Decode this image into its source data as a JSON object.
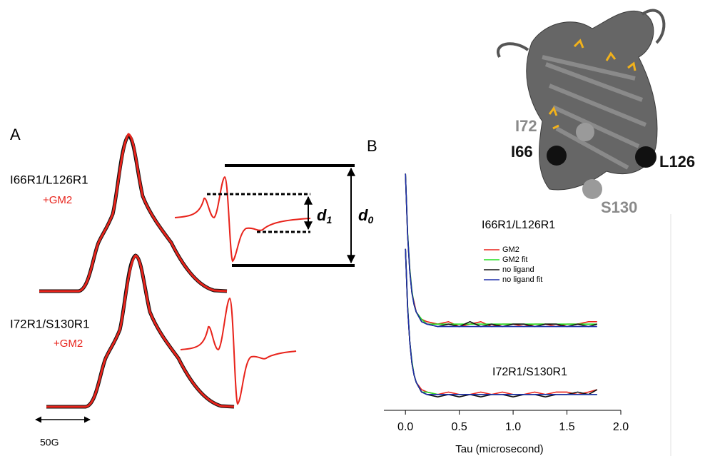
{
  "panel_a": {
    "label": "A",
    "spectra": [
      {
        "label": "I66R1/L126R1",
        "condition": "+GM2"
      },
      {
        "label": "I72R1/S130R1",
        "condition": "+GM2"
      }
    ],
    "d1": [
      "d",
      "1"
    ],
    "d0": [
      "d",
      "0"
    ],
    "scale_bar": "50G"
  },
  "structure": {
    "labels": [
      "I72",
      "I66",
      "L126",
      "S130"
    ]
  },
  "chart_data": {
    "type": "line",
    "label": "B",
    "xlabel": "Tau (microsecond)",
    "xlim": [
      -0.2,
      2.0
    ],
    "xticks": [
      {
        "value": 0,
        "label": "0.0"
      },
      0.5,
      {
        "value": 1,
        "label": "1.0"
      },
      1.5,
      {
        "value": 2,
        "label": "2.0"
      }
    ],
    "ylim": [
      0,
      1
    ],
    "x": [
      0,
      0.02,
      0.04,
      0.06,
      0.08,
      0.1,
      0.15,
      0.2,
      0.3,
      0.4,
      0.5,
      0.6,
      0.7,
      0.8,
      0.9,
      1.0,
      1.1,
      1.2,
      1.3,
      1.4,
      1.5,
      1.6,
      1.7,
      1.78
    ],
    "series": [
      {
        "name": "GM2",
        "color": "#e8231b"
      },
      {
        "name": "GM2 fit",
        "color": "#22dd22"
      },
      {
        "name": "no ligand",
        "color": "#111111"
      },
      {
        "name": "no ligand fit",
        "color": "#1f2fa8"
      }
    ],
    "sets": [
      {
        "label": "I66R1/L126R1",
        "values": [
          [
            0.99,
            0.74,
            0.6,
            0.5,
            0.46,
            0.42,
            0.39,
            0.38,
            0.37,
            0.38,
            0.36,
            0.37,
            0.38,
            0.36,
            0.37,
            0.37,
            0.36,
            0.37,
            0.37,
            0.36,
            0.37,
            0.37,
            0.38,
            0.38
          ],
          [
            0.99,
            0.75,
            0.6,
            0.51,
            0.45,
            0.42,
            0.39,
            0.37,
            0.37,
            0.37,
            0.37,
            0.37,
            0.37,
            0.37,
            0.37,
            0.37,
            0.37,
            0.37,
            0.37,
            0.37,
            0.37,
            0.37,
            0.37,
            0.37
          ],
          [
            0.99,
            0.74,
            0.59,
            0.5,
            0.45,
            0.42,
            0.38,
            0.37,
            0.36,
            0.37,
            0.36,
            0.38,
            0.36,
            0.37,
            0.36,
            0.37,
            0.37,
            0.36,
            0.37,
            0.37,
            0.36,
            0.37,
            0.36,
            0.37
          ],
          [
            0.99,
            0.74,
            0.59,
            0.5,
            0.45,
            0.42,
            0.38,
            0.37,
            0.36,
            0.36,
            0.36,
            0.36,
            0.36,
            0.36,
            0.36,
            0.36,
            0.36,
            0.36,
            0.36,
            0.36,
            0.36,
            0.36,
            0.36,
            0.36
          ]
        ]
      },
      {
        "label": "I72R1/S130R1",
        "values": [
          [
            0.68,
            0.44,
            0.3,
            0.21,
            0.16,
            0.13,
            0.1,
            0.09,
            0.08,
            0.09,
            0.08,
            0.08,
            0.09,
            0.08,
            0.09,
            0.08,
            0.08,
            0.09,
            0.08,
            0.09,
            0.09,
            0.08,
            0.09,
            0.1
          ],
          [
            0.68,
            0.45,
            0.3,
            0.22,
            0.16,
            0.13,
            0.09,
            0.09,
            0.08,
            0.08,
            0.08,
            0.08,
            0.08,
            0.08,
            0.08,
            0.08,
            0.08,
            0.08,
            0.08,
            0.08,
            0.08,
            0.08,
            0.08,
            0.08
          ],
          [
            0.68,
            0.44,
            0.3,
            0.21,
            0.16,
            0.13,
            0.09,
            0.08,
            0.07,
            0.08,
            0.07,
            0.08,
            0.07,
            0.08,
            0.08,
            0.07,
            0.08,
            0.08,
            0.07,
            0.08,
            0.08,
            0.09,
            0.08,
            0.1
          ],
          [
            0.68,
            0.44,
            0.3,
            0.21,
            0.16,
            0.13,
            0.09,
            0.08,
            0.08,
            0.08,
            0.08,
            0.08,
            0.08,
            0.08,
            0.08,
            0.08,
            0.08,
            0.08,
            0.08,
            0.08,
            0.08,
            0.08,
            0.08,
            0.08
          ]
        ]
      }
    ]
  }
}
